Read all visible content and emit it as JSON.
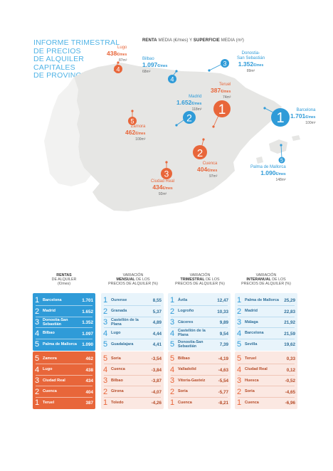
{
  "header": {
    "title_lines": [
      "INFORME TRIMESTRAL",
      "DE PRECIOS",
      "DE ALQUILER",
      "CAPITALES",
      "DE PROVINCIA"
    ],
    "subtitle_bold1": "RENTA",
    "subtitle_mid": " MEDIA (€/mes) Y ",
    "subtitle_bold2": "SUPERFICIE",
    "subtitle_end": " MEDIA (m²)"
  },
  "map": {
    "cities": [
      {
        "name": "Lugo",
        "rent": "438",
        "unit": "€/mes",
        "area": "87m²",
        "rank": "4",
        "color": "orange"
      },
      {
        "name": "Bilbao",
        "rent": "1.097",
        "unit": "€/mes",
        "area": "68m²",
        "rank": "4",
        "color": "blue"
      },
      {
        "name": "Donostia-San Sebastián",
        "name2": "San Sebastián",
        "name1": "Donostia-",
        "rent": "1.352",
        "unit": "€/mes",
        "area": "89m²",
        "rank": "3",
        "color": "blue"
      },
      {
        "name": "Teruel",
        "rent": "387",
        "unit": "€/mes",
        "area": "74m²",
        "rank": "1",
        "color": "orange"
      },
      {
        "name": "Madrid",
        "rent": "1.652",
        "unit": "€/mes",
        "area": "118m²",
        "rank": "2",
        "color": "blue"
      },
      {
        "name": "Barcelona",
        "rent": "1.701",
        "unit": "€/mes",
        "area": "100m²",
        "rank": "1",
        "color": "blue"
      },
      {
        "name": "Zamora",
        "rent": "462",
        "unit": "€/mes",
        "area": "100m²",
        "rank": "5",
        "color": "orange"
      },
      {
        "name": "Cuenca",
        "rent": "404",
        "unit": "€/mes",
        "area": "97m²",
        "rank": "2",
        "color": "orange"
      },
      {
        "name": "Ciudad Real",
        "rent": "434",
        "unit": "€/mes",
        "area": "92m²",
        "rank": "3",
        "color": "orange"
      },
      {
        "name": "Palma de Mallorca",
        "rent": "1.090",
        "unit": "€/mes",
        "area": "148m²",
        "rank": "5",
        "color": "blue"
      }
    ]
  },
  "columns": [
    {
      "l1_bold": "RENTAS",
      "l2": "DE ALQUILER",
      "l3": "(€/mes)"
    },
    {
      "l1": "VARIACIÓN",
      "l2_bold": "MENSUAL",
      "l2_rest": " DE LOS",
      "l3": "PRECIOS DE ALQUILER (%)"
    },
    {
      "l1": "VARIACIÓN",
      "l2_bold": "TRIMESTRAL",
      "l2_rest": " DE LOS",
      "l3": "PRECIOS DE ALQUILER (%)"
    },
    {
      "l1": "VARIACIÓN",
      "l2_bold": "INTERANUAL",
      "l2_rest": " DE LOS",
      "l3": "PRECIOS DE ALQUILER (%)"
    }
  ],
  "tables": {
    "rentas_top": [
      {
        "rank": "1",
        "name": "Barcelona",
        "value": "1.701"
      },
      {
        "rank": "2",
        "name": "Madrid",
        "value": "1.652"
      },
      {
        "rank": "3",
        "name": "Donostia-San Sebastián",
        "value": "1.352"
      },
      {
        "rank": "4",
        "name": "Bilbao",
        "value": "1.097"
      },
      {
        "rank": "5",
        "name": "Palma de Mallorca",
        "value": "1.090"
      }
    ],
    "rentas_bot": [
      {
        "rank": "5",
        "name": "Zamora",
        "value": "462"
      },
      {
        "rank": "4",
        "name": "Lugo",
        "value": "438"
      },
      {
        "rank": "3",
        "name": "Ciudad Real",
        "value": "434"
      },
      {
        "rank": "2",
        "name": "Cuenca",
        "value": "404"
      },
      {
        "rank": "1",
        "name": "Teruel",
        "value": "387"
      }
    ],
    "mensual_top": [
      {
        "rank": "1",
        "name": "Ourense",
        "value": "8,55"
      },
      {
        "rank": "2",
        "name": "Granada",
        "value": "5,37"
      },
      {
        "rank": "3",
        "name": "Castellón de la Plana",
        "value": "4,89"
      },
      {
        "rank": "4",
        "name": "Lugo",
        "value": "4,44"
      },
      {
        "rank": "5",
        "name": "Guadalajara",
        "value": "4,41"
      }
    ],
    "mensual_bot": [
      {
        "rank": "5",
        "name": "Soria",
        "value": "-3,54"
      },
      {
        "rank": "4",
        "name": "Cuenca",
        "value": "-3,84"
      },
      {
        "rank": "3",
        "name": "Bilbao",
        "value": "-3,87"
      },
      {
        "rank": "2",
        "name": "Girona",
        "value": "-4,07"
      },
      {
        "rank": "1",
        "name": "Toledo",
        "value": "-4,26"
      }
    ],
    "trimestral_top": [
      {
        "rank": "1",
        "name": "Ávila",
        "value": "12,47"
      },
      {
        "rank": "2",
        "name": "Logroño",
        "value": "10,33"
      },
      {
        "rank": "3",
        "name": "Cáceres",
        "value": "9,89"
      },
      {
        "rank": "4",
        "name": "Castellón de la Plana",
        "value": "9,54"
      },
      {
        "rank": "5",
        "name": "Donostia-San Sebastián",
        "value": "7,39"
      }
    ],
    "trimestral_bot": [
      {
        "rank": "5",
        "name": "Bilbao",
        "value": "-4,19"
      },
      {
        "rank": "4",
        "name": "Valladolid",
        "value": "-4,63"
      },
      {
        "rank": "3",
        "name": "Vitoria-Gasteiz",
        "value": "-5,54"
      },
      {
        "rank": "2",
        "name": "Soria",
        "value": "-5,77"
      },
      {
        "rank": "1",
        "name": "Cuenca",
        "value": "-8,21"
      }
    ],
    "interanual_top": [
      {
        "rank": "1",
        "name": "Palma de Mallorca",
        "value": "25,29"
      },
      {
        "rank": "2",
        "name": "Madrid",
        "value": "22,83"
      },
      {
        "rank": "3",
        "name": "Málaga",
        "value": "21,92"
      },
      {
        "rank": "4",
        "name": "Barcelona",
        "value": "21,59"
      },
      {
        "rank": "5",
        "name": "Sevilla",
        "value": "19,62"
      }
    ],
    "interanual_bot": [
      {
        "rank": "5",
        "name": "Teruel",
        "value": "0,33"
      },
      {
        "rank": "4",
        "name": "Ciudad Real",
        "value": "0,12"
      },
      {
        "rank": "3",
        "name": "Huesca",
        "value": "-0,52"
      },
      {
        "rank": "2",
        "name": "Soria",
        "value": "-4,65"
      },
      {
        "rank": "1",
        "name": "Cuenca",
        "value": "-6,96"
      }
    ]
  },
  "colors": {
    "blue": "#2f9bd8",
    "orange": "#e8663a",
    "light_blue": "#e8f4fb",
    "light_orange": "#fbe8e2",
    "map_fill": "#e6e6e4"
  }
}
